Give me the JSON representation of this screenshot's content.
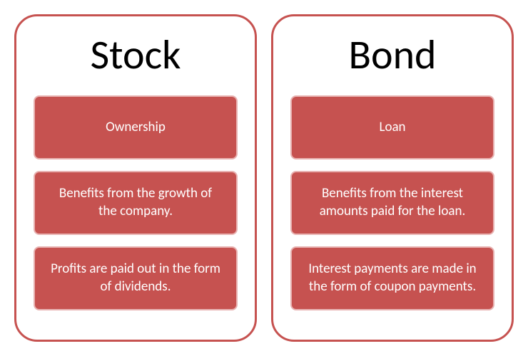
{
  "colors": {
    "panel_border": "#c65250",
    "box_fill": "#c65250",
    "box_border": "#e8b3b2",
    "title_color": "#000000",
    "box_text": "#ffffff",
    "background": "#ffffff"
  },
  "layout": {
    "panel_border_radius": 32,
    "panel_border_width": 3,
    "box_border_radius": 8,
    "box_border_width": 2,
    "title_fontsize": 58,
    "box_fontsize": 19
  },
  "panels": [
    {
      "title": "Stock",
      "items": [
        "Ownership",
        "Benefits from the growth of the company.",
        "Profits are paid out in the form of dividends."
      ]
    },
    {
      "title": "Bond",
      "items": [
        "Loan",
        "Benefits from the interest amounts paid for the loan.",
        "Interest payments are made in the form of coupon payments."
      ]
    }
  ]
}
